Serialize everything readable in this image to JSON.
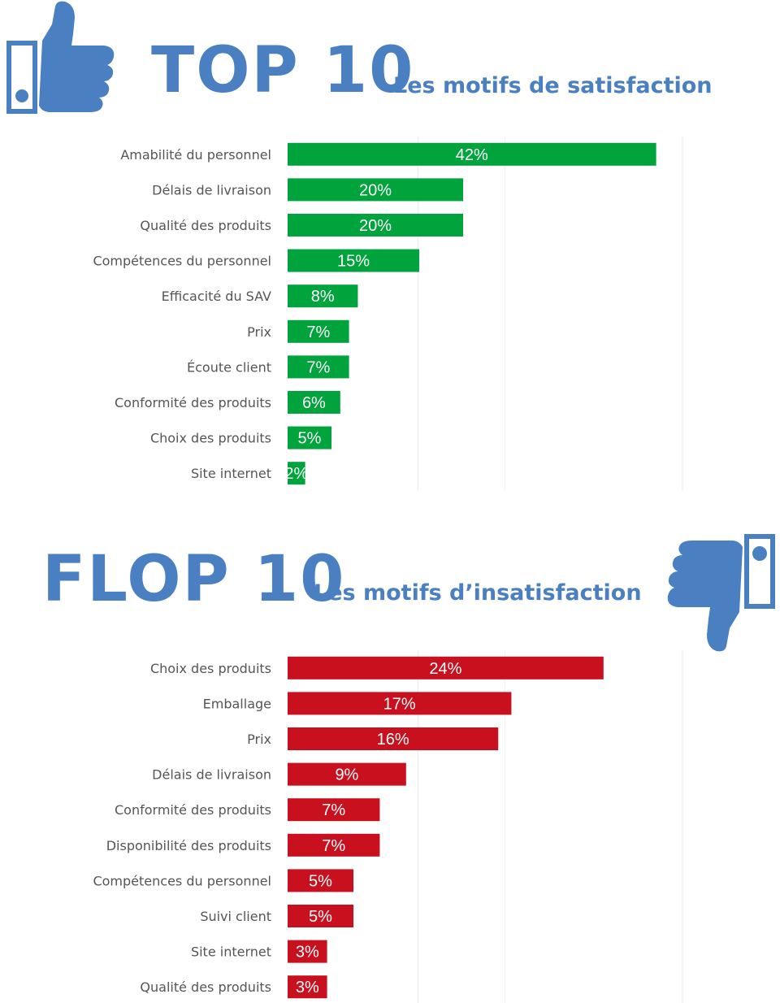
{
  "colors": {
    "accent": "#4a7fc1",
    "satisfaction_bar": "#00a33c",
    "insatisfaction_bar": "#c8101e",
    "gridline": "#eeeeee"
  },
  "icons": {
    "top": "thumbs-up-icon",
    "flop": "thumbs-down-icon"
  },
  "top": {
    "title": "TOP 10",
    "subtitle": "Les motifs de satisfaction"
  },
  "flop": {
    "title": "FLOP 10",
    "subtitle": "Les motifs d’insatisfaction"
  },
  "chart_data": [
    {
      "type": "bar",
      "orientation": "horizontal",
      "categories": [
        "Amabilité du personnel",
        "Délais de livraison",
        "Qualité des produits",
        "Compétences du personnel",
        "Efficacité du SAV",
        "Prix",
        "Écoute client",
        "Conformité des produits",
        "Choix des produits",
        "Site internet"
      ],
      "values": [
        42,
        20,
        20,
        15,
        8,
        7,
        7,
        6,
        5,
        2
      ],
      "data_labels": [
        "42%",
        "20%",
        "20%",
        "15%",
        "8%",
        "7%",
        "7%",
        "6%",
        "5%",
        "2%"
      ],
      "color": "#00a33c",
      "xlim": [
        0,
        45
      ],
      "grid": true
    },
    {
      "type": "bar",
      "orientation": "horizontal",
      "categories": [
        "Choix des produits",
        "Emballage",
        "Prix",
        "Délais de livraison",
        "Conformité des produits",
        "Disponibilité des produits",
        "Compétences du personnel",
        "Suivi client",
        "Site internet",
        "Qualité des produits"
      ],
      "values": [
        24,
        17,
        16,
        9,
        7,
        7,
        5,
        5,
        3,
        3
      ],
      "data_labels": [
        "24%",
        "17%",
        "16%",
        "9%",
        "7%",
        "7%",
        "5%",
        "5%",
        "3%",
        "3%"
      ],
      "color": "#c8101e",
      "xlim": [
        0,
        30
      ],
      "grid": true
    }
  ]
}
